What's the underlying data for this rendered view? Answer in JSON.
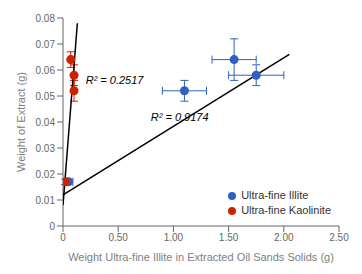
{
  "chart_data": {
    "type": "scatter",
    "xlabel": "Weight Ultra-fine Illite in Extracted Oil Sands Solids (g)",
    "ylabel": "Weight of Extract (g)",
    "xlim": [
      0,
      2.5
    ],
    "ylim": [
      0,
      0.08
    ],
    "xticks": [
      0,
      {
        "value": 0.5,
        "label": "0.50"
      },
      {
        "value": 1,
        "label": "1.00"
      },
      {
        "value": 1.5,
        "label": "1.50"
      },
      {
        "value": 2,
        "label": "2.00"
      },
      {
        "value": 2.5,
        "label": "2.50"
      }
    ],
    "yticks": [
      0,
      0.01,
      0.02,
      0.03,
      0.04,
      0.05,
      0.06,
      0.07,
      0.08
    ],
    "grid": false,
    "legend": "lower right",
    "series": [
      {
        "name": "Ultra-fine Illite",
        "type": "scatter",
        "color": "#3060C0",
        "marker": "circle",
        "x": [
          0.05,
          1.1,
          1.55,
          1.75
        ],
        "values": [
          0.017,
          0.052,
          0.064,
          0.058
        ],
        "xerr": [
          0.04,
          0.2,
          0.2,
          0.25
        ],
        "yerr": [
          0.001,
          0.004,
          0.008,
          0.004
        ]
      },
      {
        "name": "Ultra-fine Kaolinite",
        "type": "scatter",
        "color": "#CC2200",
        "marker": "circle",
        "x": [
          0.02,
          0.07,
          0.1,
          0.1
        ],
        "values": [
          0.017,
          0.064,
          0.058,
          0.052
        ],
        "xerr": [
          0.012,
          0.012,
          0.012,
          0.012
        ],
        "yerr": [
          0.001,
          0.003,
          0.004,
          0.004
        ]
      },
      {
        "type": "line",
        "color": "#000000",
        "line_style": "solid",
        "x": [
          0.0,
          2.05
        ],
        "values": [
          0.012,
          0.066
        ]
      },
      {
        "type": "line",
        "color": "#000000",
        "line_style": "solid",
        "x": [
          0.0,
          0.13
        ],
        "values": [
          0.008,
          0.078
        ]
      }
    ],
    "annotations": [
      {
        "text": "R² = 0.2517",
        "x": 0.16,
        "y": 0.056
      },
      {
        "text": "R² = 0.9174",
        "x": 0.75,
        "y": 0.042
      }
    ]
  }
}
